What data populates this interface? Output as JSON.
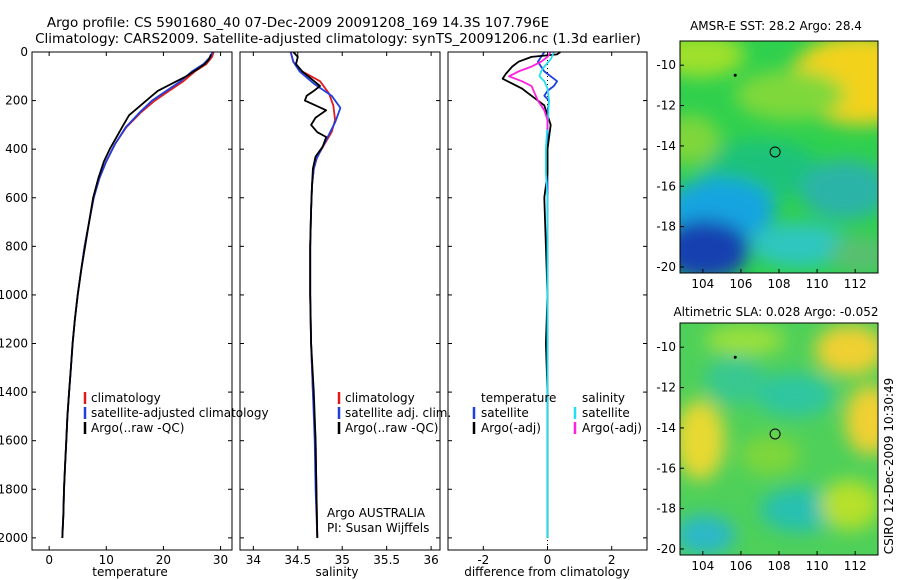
{
  "header": {
    "line1": "Argo profile: CS 5901680_40 07-Dec-2009 20091208_169 14.3S 107.796E",
    "line2": "Climatology: CARS2009. Satellite-adjusted climatology: synTS_20091206.nc (1.3d earlier)"
  },
  "side_label": "CSIRO 12-Dec-2009 10:30:49",
  "colors": {
    "climatology": "#e31a1c",
    "satellite": "#1f3fe0",
    "argo": "#000000",
    "sat_salinity": "#22e0f0",
    "argo_salinity": "#ff1fe0"
  },
  "chart_data": [
    {
      "type": "line",
      "panel": "temperature",
      "xlabel": "temperature",
      "ylabel": "",
      "xlim": [
        -3,
        32
      ],
      "ylim": [
        2050,
        0
      ],
      "xticks": [
        "0",
        "10",
        "20",
        "30"
      ],
      "yticks": [
        "0",
        "200",
        "400",
        "600",
        "800",
        "1000",
        "1200",
        "1400",
        "1600",
        "1800",
        "2000"
      ],
      "legend": [
        "climatology",
        "satellite-adjusted climatology",
        "Argo(..raw -QC)"
      ],
      "series": [
        {
          "name": "climatology",
          "color": "#e31a1c",
          "points": [
            [
              28.8,
              0
            ],
            [
              28.5,
              20
            ],
            [
              27.5,
              50
            ],
            [
              25.5,
              80
            ],
            [
              23.5,
              120
            ],
            [
              21,
              160
            ],
            [
              18.5,
              200
            ],
            [
              16,
              250
            ],
            [
              13.5,
              310
            ],
            [
              11.5,
              380
            ],
            [
              10,
              450
            ],
            [
              8.8,
              520
            ],
            [
              7.8,
              600
            ],
            [
              7,
              700
            ],
            [
              6.2,
              800
            ],
            [
              5.6,
              900
            ],
            [
              5,
              1000
            ],
            [
              4.5,
              1100
            ],
            [
              4.1,
              1200
            ],
            [
              3.8,
              1300
            ],
            [
              3.5,
              1400
            ],
            [
              3.2,
              1500
            ],
            [
              3,
              1600
            ],
            [
              2.8,
              1700
            ],
            [
              2.6,
              1800
            ],
            [
              2.5,
              1900
            ],
            [
              2.3,
              2000
            ]
          ]
        },
        {
          "name": "satellite-adjusted climatology",
          "color": "#1f3fe0",
          "points": [
            [
              28.6,
              0
            ],
            [
              28.2,
              20
            ],
            [
              27,
              50
            ],
            [
              25,
              80
            ],
            [
              23,
              120
            ],
            [
              20.5,
              160
            ],
            [
              18,
              200
            ],
            [
              15.8,
              250
            ],
            [
              13.4,
              310
            ],
            [
              11.5,
              380
            ],
            [
              10,
              450
            ],
            [
              8.8,
              520
            ],
            [
              7.8,
              600
            ],
            [
              7,
              700
            ],
            [
              6.2,
              800
            ],
            [
              5.6,
              900
            ],
            [
              5,
              1000
            ],
            [
              4.5,
              1100
            ],
            [
              4.1,
              1200
            ],
            [
              3.8,
              1300
            ],
            [
              3.5,
              1400
            ],
            [
              3.2,
              1500
            ],
            [
              3,
              1600
            ],
            [
              2.8,
              1700
            ],
            [
              2.6,
              1800
            ],
            [
              2.5,
              1900
            ],
            [
              2.3,
              2000
            ]
          ]
        },
        {
          "name": "Argo(..raw -QC)",
          "color": "#000000",
          "points": [
            [
              28.3,
              10
            ],
            [
              28,
              30
            ],
            [
              27.2,
              50
            ],
            [
              26,
              70
            ],
            [
              24,
              100
            ],
            [
              21.5,
              130
            ],
            [
              19,
              160
            ],
            [
              17.5,
              190
            ],
            [
              15.5,
              230
            ],
            [
              14,
              260
            ],
            [
              13,
              300
            ],
            [
              11.8,
              350
            ],
            [
              10.6,
              400
            ],
            [
              9.6,
              450
            ],
            [
              8.6,
              520
            ],
            [
              7.7,
              600
            ],
            [
              7,
              700
            ],
            [
              6.3,
              800
            ],
            [
              5.6,
              900
            ],
            [
              5,
              1000
            ],
            [
              4.5,
              1100
            ],
            [
              4.1,
              1200
            ],
            [
              3.8,
              1300
            ],
            [
              3.5,
              1400
            ],
            [
              3.2,
              1500
            ],
            [
              3,
              1600
            ],
            [
              2.8,
              1700
            ],
            [
              2.6,
              1800
            ],
            [
              2.5,
              1900
            ],
            [
              2.3,
              2000
            ]
          ]
        }
      ]
    },
    {
      "type": "line",
      "panel": "salinity",
      "xlabel": "salinity",
      "ylabel": "",
      "xlim": [
        33.85,
        36.1
      ],
      "ylim": [
        2050,
        0
      ],
      "xticks": [
        "34",
        "34.5",
        "35",
        "35.5",
        "36"
      ],
      "legend": [
        "climatology",
        "satellite adj. clim.",
        "Argo(..raw -QC)"
      ],
      "series": [
        {
          "name": "climatology",
          "color": "#e31a1c",
          "points": [
            [
              34.42,
              0
            ],
            [
              34.45,
              40
            ],
            [
              34.55,
              80
            ],
            [
              34.75,
              120
            ],
            [
              34.85,
              170
            ],
            [
              34.9,
              220
            ],
            [
              34.92,
              280
            ],
            [
              34.88,
              330
            ],
            [
              34.8,
              380
            ],
            [
              34.72,
              430
            ],
            [
              34.68,
              480
            ],
            [
              34.66,
              550
            ],
            [
              34.65,
              650
            ],
            [
              34.64,
              800
            ],
            [
              34.64,
              1000
            ],
            [
              34.65,
              1200
            ],
            [
              34.67,
              1400
            ],
            [
              34.7,
              1600
            ],
            [
              34.71,
              1800
            ],
            [
              34.72,
              2000
            ]
          ]
        },
        {
          "name": "satellite adj. clim.",
          "color": "#1f3fe0",
          "points": [
            [
              34.42,
              0
            ],
            [
              34.45,
              40
            ],
            [
              34.52,
              80
            ],
            [
              34.68,
              130
            ],
            [
              34.88,
              180
            ],
            [
              34.98,
              230
            ],
            [
              34.92,
              290
            ],
            [
              34.85,
              340
            ],
            [
              34.78,
              390
            ],
            [
              34.71,
              440
            ],
            [
              34.68,
              480
            ],
            [
              34.66,
              550
            ],
            [
              34.65,
              650
            ],
            [
              34.64,
              800
            ],
            [
              34.64,
              1000
            ],
            [
              34.65,
              1200
            ],
            [
              34.67,
              1400
            ],
            [
              34.69,
              1600
            ],
            [
              34.7,
              1800
            ],
            [
              34.72,
              2000
            ]
          ]
        },
        {
          "name": "Argo(..raw -QC)",
          "color": "#000000",
          "points": [
            [
              34.45,
              0
            ],
            [
              34.5,
              20
            ],
            [
              34.48,
              50
            ],
            [
              34.55,
              80
            ],
            [
              34.65,
              110
            ],
            [
              34.75,
              140
            ],
            [
              34.68,
              160
            ],
            [
              34.6,
              180
            ],
            [
              34.58,
              200
            ],
            [
              34.7,
              220
            ],
            [
              34.82,
              240
            ],
            [
              34.7,
              270
            ],
            [
              34.65,
              300
            ],
            [
              34.72,
              330
            ],
            [
              34.82,
              350
            ],
            [
              34.78,
              390
            ],
            [
              34.7,
              430
            ],
            [
              34.67,
              480
            ],
            [
              34.66,
              550
            ],
            [
              34.65,
              650
            ],
            [
              34.64,
              800
            ],
            [
              34.64,
              1000
            ],
            [
              34.65,
              1200
            ],
            [
              34.68,
              1400
            ],
            [
              34.7,
              1600
            ],
            [
              34.71,
              1800
            ],
            [
              34.72,
              2000
            ]
          ]
        }
      ]
    },
    {
      "type": "line",
      "panel": "difference",
      "xlabel": "difference from climatology",
      "ylabel": "",
      "xlim": [
        -3.1,
        3.1
      ],
      "ylim": [
        2050,
        0
      ],
      "xticks": [
        "-2",
        "0",
        "2"
      ],
      "legend_left_title": "temperature",
      "legend_right_title": "salinity",
      "legend": [
        "satellite",
        "Argo(-adj)",
        "satellite",
        "Argo(-adj)"
      ],
      "series": [
        {
          "name": "temperature satellite",
          "color": "#1f3fe0",
          "points": [
            [
              -0.1,
              0
            ],
            [
              -0.2,
              20
            ],
            [
              -0.3,
              40
            ],
            [
              -0.2,
              60
            ],
            [
              -0.1,
              80
            ],
            [
              0.1,
              100
            ],
            [
              0.3,
              120
            ],
            [
              0.2,
              140
            ],
            [
              0,
              160
            ],
            [
              -0.1,
              180
            ],
            [
              0.05,
              200
            ],
            [
              0,
              250
            ],
            [
              0,
              300
            ],
            [
              0,
              400
            ],
            [
              0,
              600
            ],
            [
              0,
              1000
            ],
            [
              0,
              2000
            ]
          ]
        },
        {
          "name": "temperature Argo(-adj)",
          "color": "#000000",
          "points": [
            [
              0.4,
              0
            ],
            [
              0.3,
              10
            ],
            [
              -0.5,
              20
            ],
            [
              -0.9,
              40
            ],
            [
              -1.1,
              60
            ],
            [
              -1.3,
              90
            ],
            [
              -1.4,
              110
            ],
            [
              -1.1,
              130
            ],
            [
              -0.8,
              150
            ],
            [
              -0.6,
              170
            ],
            [
              -0.4,
              190
            ],
            [
              -0.1,
              220
            ],
            [
              0,
              260
            ],
            [
              0.1,
              300
            ],
            [
              0.05,
              350
            ],
            [
              0,
              400
            ],
            [
              0,
              500
            ],
            [
              -0.1,
              600
            ],
            [
              -0.05,
              800
            ],
            [
              0,
              1000
            ],
            [
              -0.05,
              1200
            ],
            [
              0,
              1400
            ],
            [
              0,
              1600
            ],
            [
              0,
              1800
            ],
            [
              0,
              2000
            ]
          ]
        },
        {
          "name": "salinity satellite",
          "color": "#22e0f0",
          "points": [
            [
              0.2,
              0
            ],
            [
              0.1,
              30
            ],
            [
              -0.1,
              60
            ],
            [
              -0.2,
              80
            ],
            [
              -0.25,
              100
            ],
            [
              -0.1,
              120
            ],
            [
              0,
              150
            ],
            [
              0.05,
              200
            ],
            [
              0,
              300
            ],
            [
              -0.05,
              400
            ],
            [
              -0.05,
              500
            ],
            [
              0,
              600
            ],
            [
              0,
              1000
            ],
            [
              0,
              1500
            ],
            [
              0,
              2000
            ]
          ]
        },
        {
          "name": "salinity Argo(-adj)",
          "color": "#ff1fe0",
          "points": [
            [
              0.1,
              0
            ],
            [
              0,
              20
            ],
            [
              -0.2,
              40
            ],
            [
              -0.5,
              60
            ],
            [
              -0.9,
              80
            ],
            [
              -1.2,
              100
            ],
            [
              -0.8,
              120
            ],
            [
              -0.5,
              140
            ],
            [
              -0.4,
              170
            ],
            [
              -0.3,
              200
            ],
            [
              -0.1,
              240
            ],
            [
              0,
              280
            ],
            [
              0,
              320
            ]
          ]
        }
      ]
    },
    {
      "type": "heatmap",
      "panel": "sst_map",
      "title": "AMSR-E SST: 28.2 Argo: 28.4",
      "xlim": [
        102.8,
        113.2
      ],
      "ylim": [
        -20.3,
        -8.8
      ],
      "xticks": [
        "104",
        "106",
        "108",
        "110",
        "112"
      ],
      "yticks": [
        "-10",
        "-12",
        "-14",
        "-16",
        "-18",
        "-20"
      ],
      "float_position": {
        "lon": 107.796,
        "lat": -14.3
      },
      "previous_position": {
        "lon": 105.7,
        "lat": -10.5
      }
    },
    {
      "type": "heatmap",
      "panel": "sla_map",
      "title": "Altimetric SLA: 0.028 Argo: -0.052",
      "xlim": [
        102.8,
        113.2
      ],
      "ylim": [
        -20.3,
        -8.8
      ],
      "xticks": [
        "104",
        "106",
        "108",
        "110",
        "112"
      ],
      "yticks": [
        "-10",
        "-12",
        "-14",
        "-16",
        "-18",
        "-20"
      ],
      "float_position": {
        "lon": 107.796,
        "lat": -14.3
      },
      "previous_position": {
        "lon": 105.7,
        "lat": -10.5
      }
    }
  ],
  "annotation": {
    "line1": "Argo AUSTRALIA",
    "line2": "PI: Susan Wijffels"
  }
}
